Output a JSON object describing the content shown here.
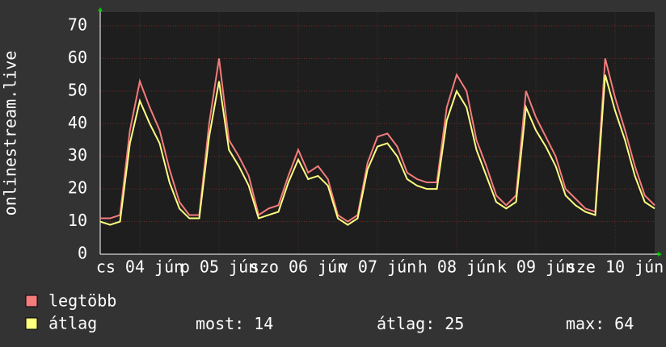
{
  "chart_data": {
    "type": "line",
    "y_label": "onlinestream.live",
    "x": [
      0,
      3,
      6,
      9,
      12,
      15,
      18,
      21,
      24,
      27,
      30,
      33,
      36,
      39,
      42,
      45,
      48,
      51,
      54,
      57,
      60,
      63,
      66,
      69,
      72,
      75,
      78,
      81,
      84,
      87,
      90,
      93,
      96,
      99,
      102,
      105,
      108,
      111,
      114,
      117,
      120,
      123,
      126,
      129,
      132,
      135,
      138,
      141,
      144,
      147,
      150,
      153,
      156,
      159,
      162,
      165,
      168
    ],
    "series": [
      {
        "name": "legtöbb",
        "color": "#f47c7c",
        "values": [
          11,
          11,
          12,
          38,
          53,
          45,
          38,
          26,
          16,
          12,
          12,
          40,
          60,
          35,
          30,
          24,
          12,
          14,
          15,
          24,
          32,
          25,
          27,
          23,
          12,
          10,
          12,
          28,
          36,
          37,
          33,
          25,
          23,
          22,
          22,
          45,
          55,
          50,
          35,
          27,
          18,
          15,
          18,
          50,
          42,
          36,
          30,
          20,
          17,
          14,
          13,
          60,
          48,
          38,
          27,
          18,
          15
        ]
      },
      {
        "name": "átlag",
        "color": "#ffff80",
        "values": [
          10,
          9,
          10,
          34,
          47,
          40,
          34,
          22,
          14,
          11,
          11,
          36,
          53,
          32,
          27,
          21,
          11,
          12,
          13,
          22,
          29,
          23,
          24,
          21,
          11,
          9,
          11,
          26,
          33,
          34,
          30,
          23,
          21,
          20,
          20,
          41,
          50,
          45,
          32,
          24,
          16,
          14,
          16,
          45,
          38,
          33,
          27,
          18,
          15,
          13,
          12,
          55,
          44,
          35,
          24,
          16,
          14
        ]
      }
    ],
    "xlim": [
      0,
      168
    ],
    "ylim": [
      0,
      70
    ],
    "yticks": [
      0,
      10,
      20,
      30,
      40,
      50,
      60,
      70
    ],
    "xticks": [
      {
        "value": 12,
        "label": "cs 04 jún"
      },
      {
        "value": 36,
        "label": "p 05 jún"
      },
      {
        "value": 60,
        "label": "szo 06 jún"
      },
      {
        "value": 84,
        "label": "v 07 jún"
      },
      {
        "value": 108,
        "label": "h 08 jún"
      },
      {
        "value": 132,
        "label": "k 09 jún"
      },
      {
        "value": 156,
        "label": "sze 10 jún"
      }
    ],
    "grid": true,
    "stats": [
      {
        "label": "most:",
        "value": 14
      },
      {
        "label": "átlag:",
        "value": 25
      },
      {
        "label": "max:",
        "value": 64
      }
    ]
  }
}
